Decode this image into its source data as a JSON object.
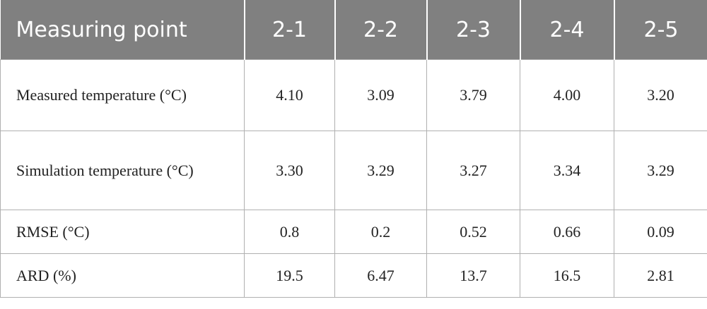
{
  "table": {
    "header": [
      "Measuring point",
      "2-1",
      "2-2",
      "2-3",
      "2-4",
      "2-5"
    ],
    "rows": [
      [
        "Measured temperature (°C)",
        "4.10",
        "3.09",
        "3.79",
        "4.00",
        "3.20"
      ],
      [
        "Simulation temperature (°C)",
        "3.30",
        "3.29",
        "3.27",
        "3.34",
        "3.29"
      ],
      [
        "RMSE (°C)",
        "0.8",
        "0.2",
        "0.52",
        "0.66",
        "0.09"
      ],
      [
        "ARD (%)",
        "19.5",
        "6.47",
        "13.7",
        "16.5",
        "2.81"
      ]
    ]
  }
}
